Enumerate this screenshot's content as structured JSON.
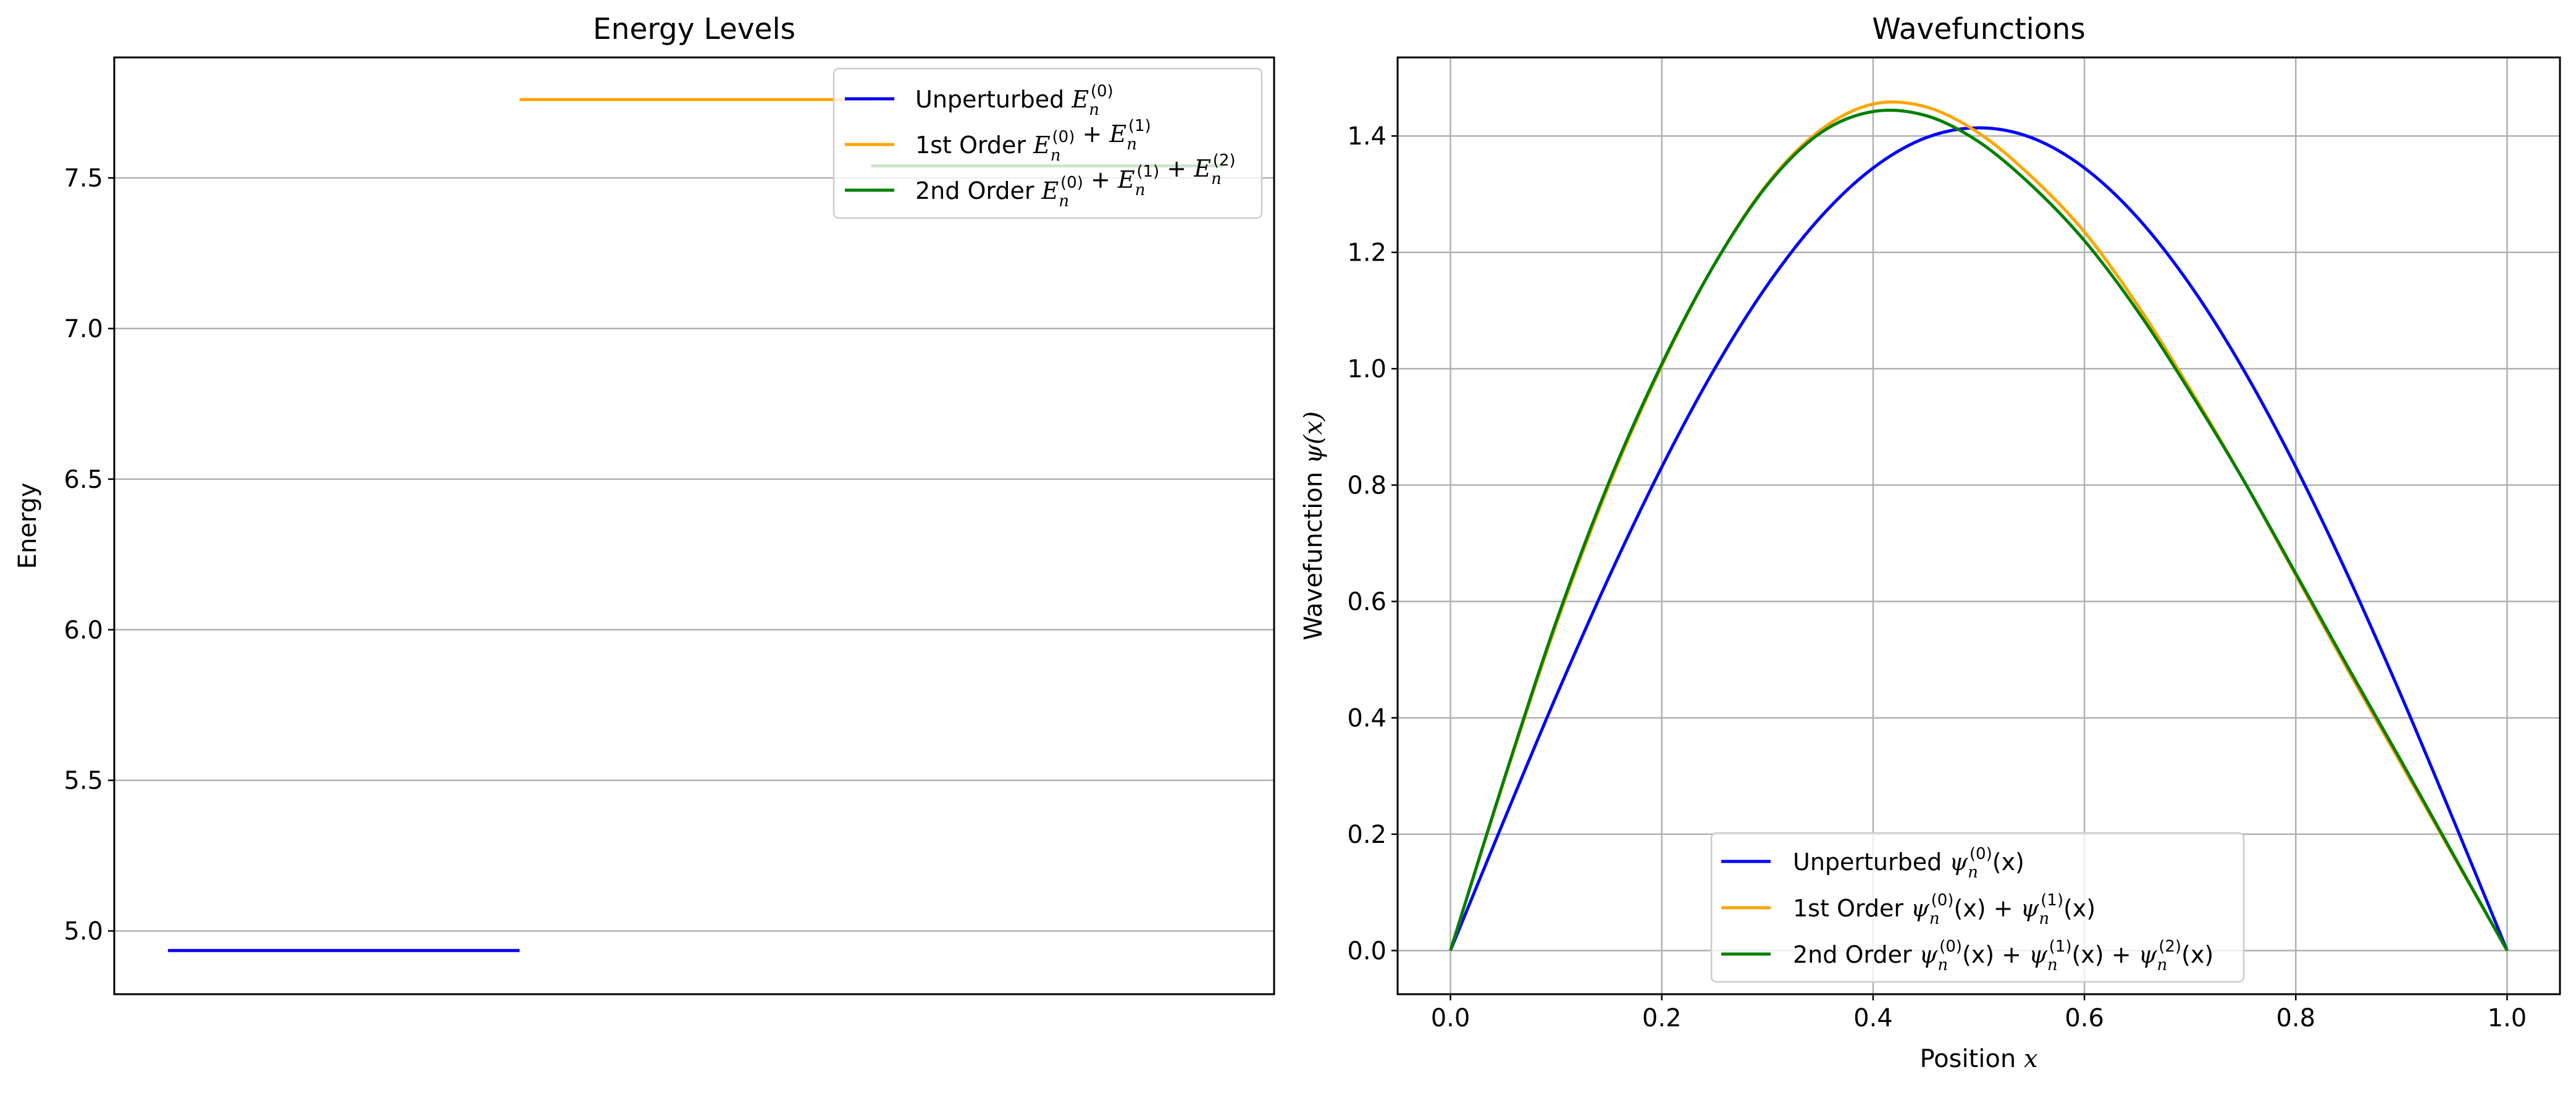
{
  "chart_data": [
    {
      "type": "line",
      "title": "Energy Levels",
      "xlabel": "",
      "ylabel": "Energy",
      "ylim": [
        4.79,
        7.9
      ],
      "yticks": [
        "5.0",
        "5.5",
        "6.0",
        "6.5",
        "7.0",
        "7.5"
      ],
      "grid": "y",
      "legend_position": "top-right",
      "series": [
        {
          "name": "Unperturbed",
          "math": {
            "base": "E",
            "sub": "n",
            "sups": [
              "(0)"
            ]
          },
          "value": 4.935,
          "segment": [
            0,
            1
          ],
          "color": "#0000ff"
        },
        {
          "name": "1st Order",
          "math": {
            "base": "E",
            "sub": "n",
            "sups": [
              "(0)",
              "(1)"
            ]
          },
          "value": 7.76,
          "segment": [
            1,
            2
          ],
          "color": "#ffa500"
        },
        {
          "name": "2nd Order",
          "math": {
            "base": "E",
            "sub": "n",
            "sups": [
              "(0)",
              "(1)",
              "(2)"
            ]
          },
          "value": 7.54,
          "segment": [
            2,
            3
          ],
          "color": "#008000"
        }
      ]
    },
    {
      "type": "line",
      "title": "Wavefunctions",
      "xlabel": "Position",
      "xlabel_var": "x",
      "ylabel": "Wavefunction",
      "ylabel_var": "ψ(x)",
      "xlim": [
        -0.05,
        1.05
      ],
      "ylim": [
        -0.075,
        1.535
      ],
      "xticks": [
        "0.0",
        "0.2",
        "0.4",
        "0.6",
        "0.8",
        "1.0"
      ],
      "yticks": [
        "0.0",
        "0.2",
        "0.4",
        "0.6",
        "0.8",
        "1.0",
        "1.2",
        "1.4"
      ],
      "grid": "both",
      "legend_position": "lower center",
      "x": [
        0,
        0.05,
        0.1,
        0.15,
        0.2,
        0.25,
        0.3,
        0.35,
        0.4,
        0.45,
        0.5,
        0.55,
        0.6,
        0.65,
        0.7,
        0.75,
        0.8,
        0.85,
        0.9,
        0.95,
        1.0
      ],
      "series": [
        {
          "name": "Unperturbed",
          "math": {
            "base": "ψ",
            "sub": "n",
            "sups": [
              "(0)"
            ],
            "arg": "(x)"
          },
          "color": "#0000ff",
          "values": [
            0,
            0.221,
            0.437,
            0.642,
            0.831,
            1.0,
            1.144,
            1.26,
            1.345,
            1.397,
            1.414,
            1.397,
            1.345,
            1.26,
            1.144,
            1.0,
            0.831,
            0.642,
            0.437,
            0.221,
            0
          ]
        },
        {
          "name": "1st Order",
          "math": {
            "base": "ψ",
            "sub": "n",
            "sups": [
              "(0)",
              "(1)"
            ],
            "arg": "(x)"
          },
          "color": "#ffa500",
          "values": [
            0,
            0.288,
            0.56,
            0.8,
            1.005,
            1.18,
            1.318,
            1.41,
            1.455,
            1.45,
            1.405,
            1.33,
            1.235,
            1.11,
            0.965,
            0.81,
            0.645,
            0.48,
            0.32,
            0.16,
            0
          ]
        },
        {
          "name": "2nd Order",
          "math": {
            "base": "ψ",
            "sub": "n",
            "sups": [
              "(0)",
              "(1)",
              "(2)"
            ],
            "arg": "(x)"
          },
          "color": "#008000",
          "values": [
            0,
            0.29,
            0.565,
            0.805,
            1.008,
            1.18,
            1.316,
            1.405,
            1.442,
            1.435,
            1.39,
            1.315,
            1.22,
            1.1,
            0.96,
            0.81,
            0.648,
            0.485,
            0.325,
            0.162,
            0
          ]
        }
      ]
    }
  ]
}
